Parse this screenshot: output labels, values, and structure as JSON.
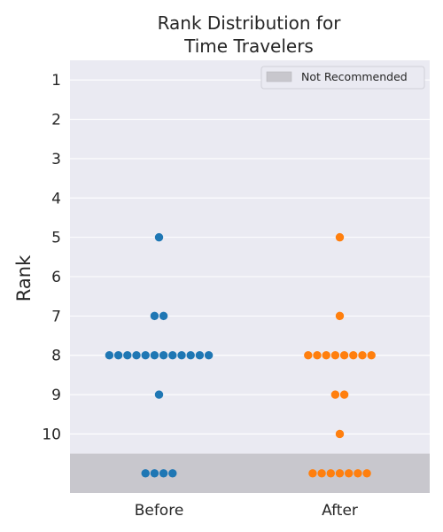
{
  "chart_data": {
    "type": "scatter",
    "title_lines": [
      "Rank Distribution for",
      "Time Travelers"
    ],
    "xlabel": "",
    "ylabel": "Rank",
    "categories": [
      "Before",
      "After"
    ],
    "y_ticks": [
      "1",
      "2",
      "3",
      "4",
      "5",
      "6",
      "7",
      "8",
      "9",
      "10"
    ],
    "ylim": [
      0.5,
      11.5
    ],
    "inverted_y": true,
    "grid": true,
    "legend": {
      "position": "top-right",
      "entries": [
        {
          "label": "Not Recommended",
          "color": "#c8c7cd"
        }
      ]
    },
    "shaded_region": {
      "label": "Not Recommended",
      "from": 10.5,
      "to": 11.5,
      "color": "#c8c7cd"
    },
    "unranked_row": 11,
    "series": [
      {
        "category": "Before",
        "color": "#1f77b4",
        "counts": [
          {
            "rank": 5,
            "n": 1
          },
          {
            "rank": 7,
            "n": 2
          },
          {
            "rank": 8,
            "n": 12
          },
          {
            "rank": 9,
            "n": 1
          },
          {
            "rank": 11,
            "n": 4
          }
        ]
      },
      {
        "category": "After",
        "color": "#ff7f0e",
        "counts": [
          {
            "rank": 5,
            "n": 1
          },
          {
            "rank": 7,
            "n": 1
          },
          {
            "rank": 8,
            "n": 8
          },
          {
            "rank": 9,
            "n": 2
          },
          {
            "rank": 10,
            "n": 1
          },
          {
            "rank": 11,
            "n": 7
          }
        ]
      }
    ]
  }
}
